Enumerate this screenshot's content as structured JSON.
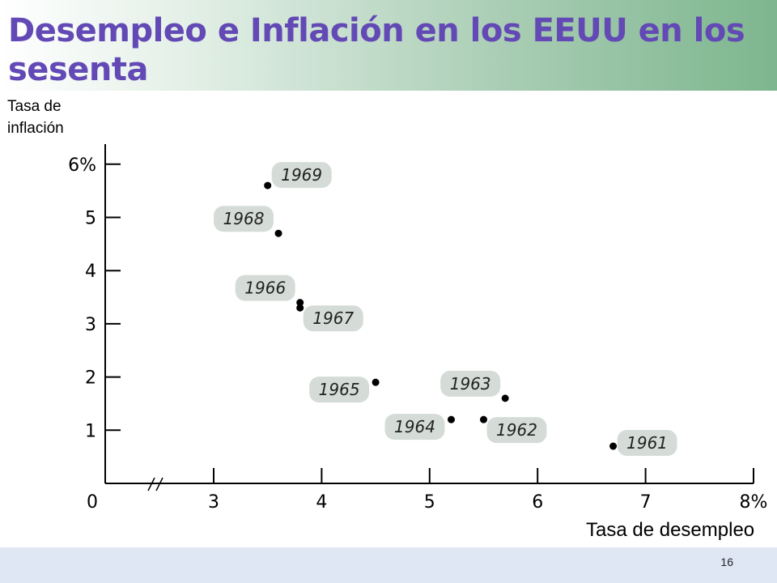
{
  "slide": {
    "title": "Desempleo e Inflación en los EEUU en los sesenta",
    "page_number": "16"
  },
  "colors": {
    "title": "#6349b5",
    "label_pill": "#d5dcd7",
    "point": "#000000"
  },
  "chart_data": {
    "type": "scatter",
    "title": "",
    "xlabel": "Tasa de desempleo",
    "ylabel": "Tasa de inflación",
    "xlim": [
      3,
      8
    ],
    "ylim": [
      0,
      6
    ],
    "axis_break": "x-axis between 0 and 3",
    "grid": false,
    "x_ticks": [
      {
        "value": 3,
        "label": "3"
      },
      {
        "value": 4,
        "label": "4"
      },
      {
        "value": 5,
        "label": "5"
      },
      {
        "value": 6,
        "label": "6"
      },
      {
        "value": 7,
        "label": "7"
      },
      {
        "value": 8,
        "label": "8%"
      }
    ],
    "x_origin_label": "0",
    "y_ticks": [
      {
        "value": 1,
        "label": "1"
      },
      {
        "value": 2,
        "label": "2"
      },
      {
        "value": 3,
        "label": "3"
      },
      {
        "value": 4,
        "label": "4"
      },
      {
        "value": 5,
        "label": "5"
      },
      {
        "value": 6,
        "label": "6%"
      }
    ],
    "points": [
      {
        "year": "1961",
        "x": 6.7,
        "y": 0.7,
        "label_side": "right"
      },
      {
        "year": "1962",
        "x": 5.5,
        "y": 1.2,
        "label_side": "lower-right"
      },
      {
        "year": "1963",
        "x": 5.7,
        "y": 1.6,
        "label_side": "upper-left"
      },
      {
        "year": "1964",
        "x": 5.2,
        "y": 1.2,
        "label_side": "lower-left"
      },
      {
        "year": "1965",
        "x": 4.5,
        "y": 1.9,
        "label_side": "lower-left"
      },
      {
        "year": "1966",
        "x": 3.8,
        "y": 3.4,
        "label_side": "upper-left"
      },
      {
        "year": "1967",
        "x": 3.8,
        "y": 3.3,
        "label_side": "lower-right"
      },
      {
        "year": "1968",
        "x": 3.6,
        "y": 4.7,
        "label_side": "upper-left"
      },
      {
        "year": "1969",
        "x": 3.5,
        "y": 5.6,
        "label_side": "upper-right"
      }
    ]
  }
}
